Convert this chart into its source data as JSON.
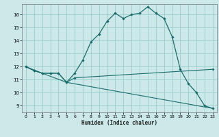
{
  "xlabel": "Humidex (Indice chaleur)",
  "bg_color": "#cce8e8",
  "grid_color": "#99cccc",
  "line_color": "#1a6b6b",
  "xlim": [
    -0.5,
    23.5
  ],
  "ylim": [
    8.5,
    16.8
  ],
  "yticks": [
    9,
    10,
    11,
    12,
    13,
    14,
    15,
    16
  ],
  "xticks": [
    0,
    1,
    2,
    3,
    4,
    5,
    6,
    7,
    8,
    9,
    10,
    11,
    12,
    13,
    14,
    15,
    16,
    17,
    18,
    19,
    20,
    21,
    22,
    23
  ],
  "curve1_x": [
    0,
    1,
    2,
    3,
    4,
    5,
    6,
    7,
    8,
    9,
    10,
    11,
    12,
    13,
    14,
    15,
    16,
    17,
    18,
    19,
    20,
    21,
    22,
    23
  ],
  "curve1_y": [
    12.0,
    11.7,
    11.5,
    11.5,
    11.5,
    10.8,
    11.5,
    12.5,
    13.9,
    14.5,
    15.5,
    16.1,
    15.7,
    16.0,
    16.1,
    16.6,
    16.1,
    15.7,
    14.3,
    11.8,
    10.7,
    10.0,
    9.0,
    8.8
  ],
  "curve2_x": [
    0,
    1,
    2,
    3,
    4,
    5,
    6,
    23
  ],
  "curve2_y": [
    12.0,
    11.7,
    11.5,
    11.5,
    11.5,
    10.8,
    11.15,
    11.8
  ],
  "curve3_x": [
    0,
    2,
    5,
    23
  ],
  "curve3_y": [
    12.0,
    11.5,
    10.8,
    8.8
  ]
}
